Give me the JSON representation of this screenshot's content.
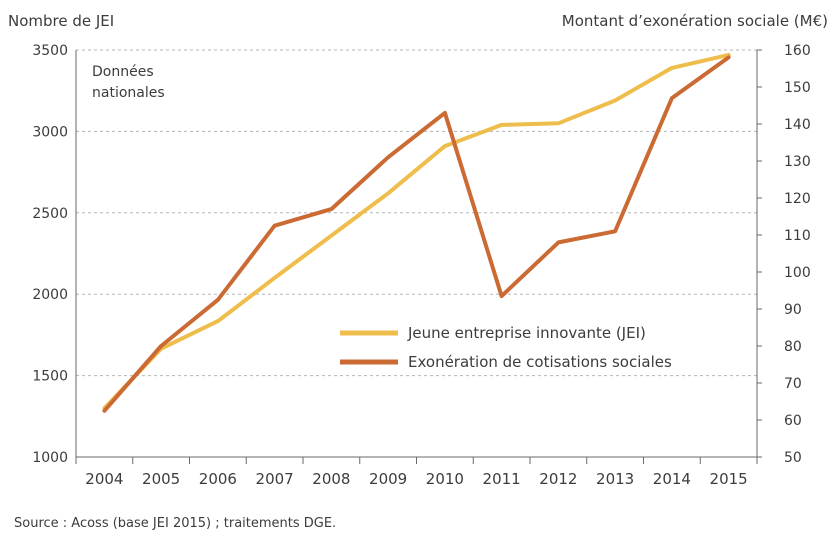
{
  "chart_data": {
    "type": "line",
    "ylabel_left": "Nombre de JEI",
    "ylabel_right": "Montant d’exonération sociale (M€)",
    "annotation": [
      "Données",
      "nationales"
    ],
    "x": [
      "2004",
      "2005",
      "2006",
      "2007",
      "2008",
      "2009",
      "2010",
      "2011",
      "2012",
      "2013",
      "2014",
      "2015"
    ],
    "yticks_left": [
      "1000",
      "1500",
      "2000",
      "2500",
      "3000",
      "3500"
    ],
    "yticks_right": [
      "50",
      "60",
      "70",
      "80",
      "90",
      "100",
      "110",
      "120",
      "130",
      "140",
      "150",
      "160"
    ],
    "ylim_left": [
      1000,
      3500
    ],
    "ylim_right": [
      50,
      160
    ],
    "grid": "horizontal dashed",
    "legend_position": "center-right",
    "series": [
      {
        "name": "Jeune entreprise innovante (JEI)",
        "axis": "left",
        "color": "#efbd4c",
        "values": [
          1300,
          1665,
          1835,
          2100,
          2360,
          2620,
          2910,
          3040,
          3050,
          3190,
          3390,
          3470
        ]
      },
      {
        "name": "Exonération de cotisations sociales",
        "axis": "right",
        "color": "#cc6a34",
        "values": [
          62.5,
          80,
          92.5,
          112.5,
          117,
          131,
          143,
          93.5,
          108,
          111,
          147,
          158
        ]
      }
    ]
  },
  "source": "Source : Acoss (base JEI 2015) ; traitements DGE."
}
